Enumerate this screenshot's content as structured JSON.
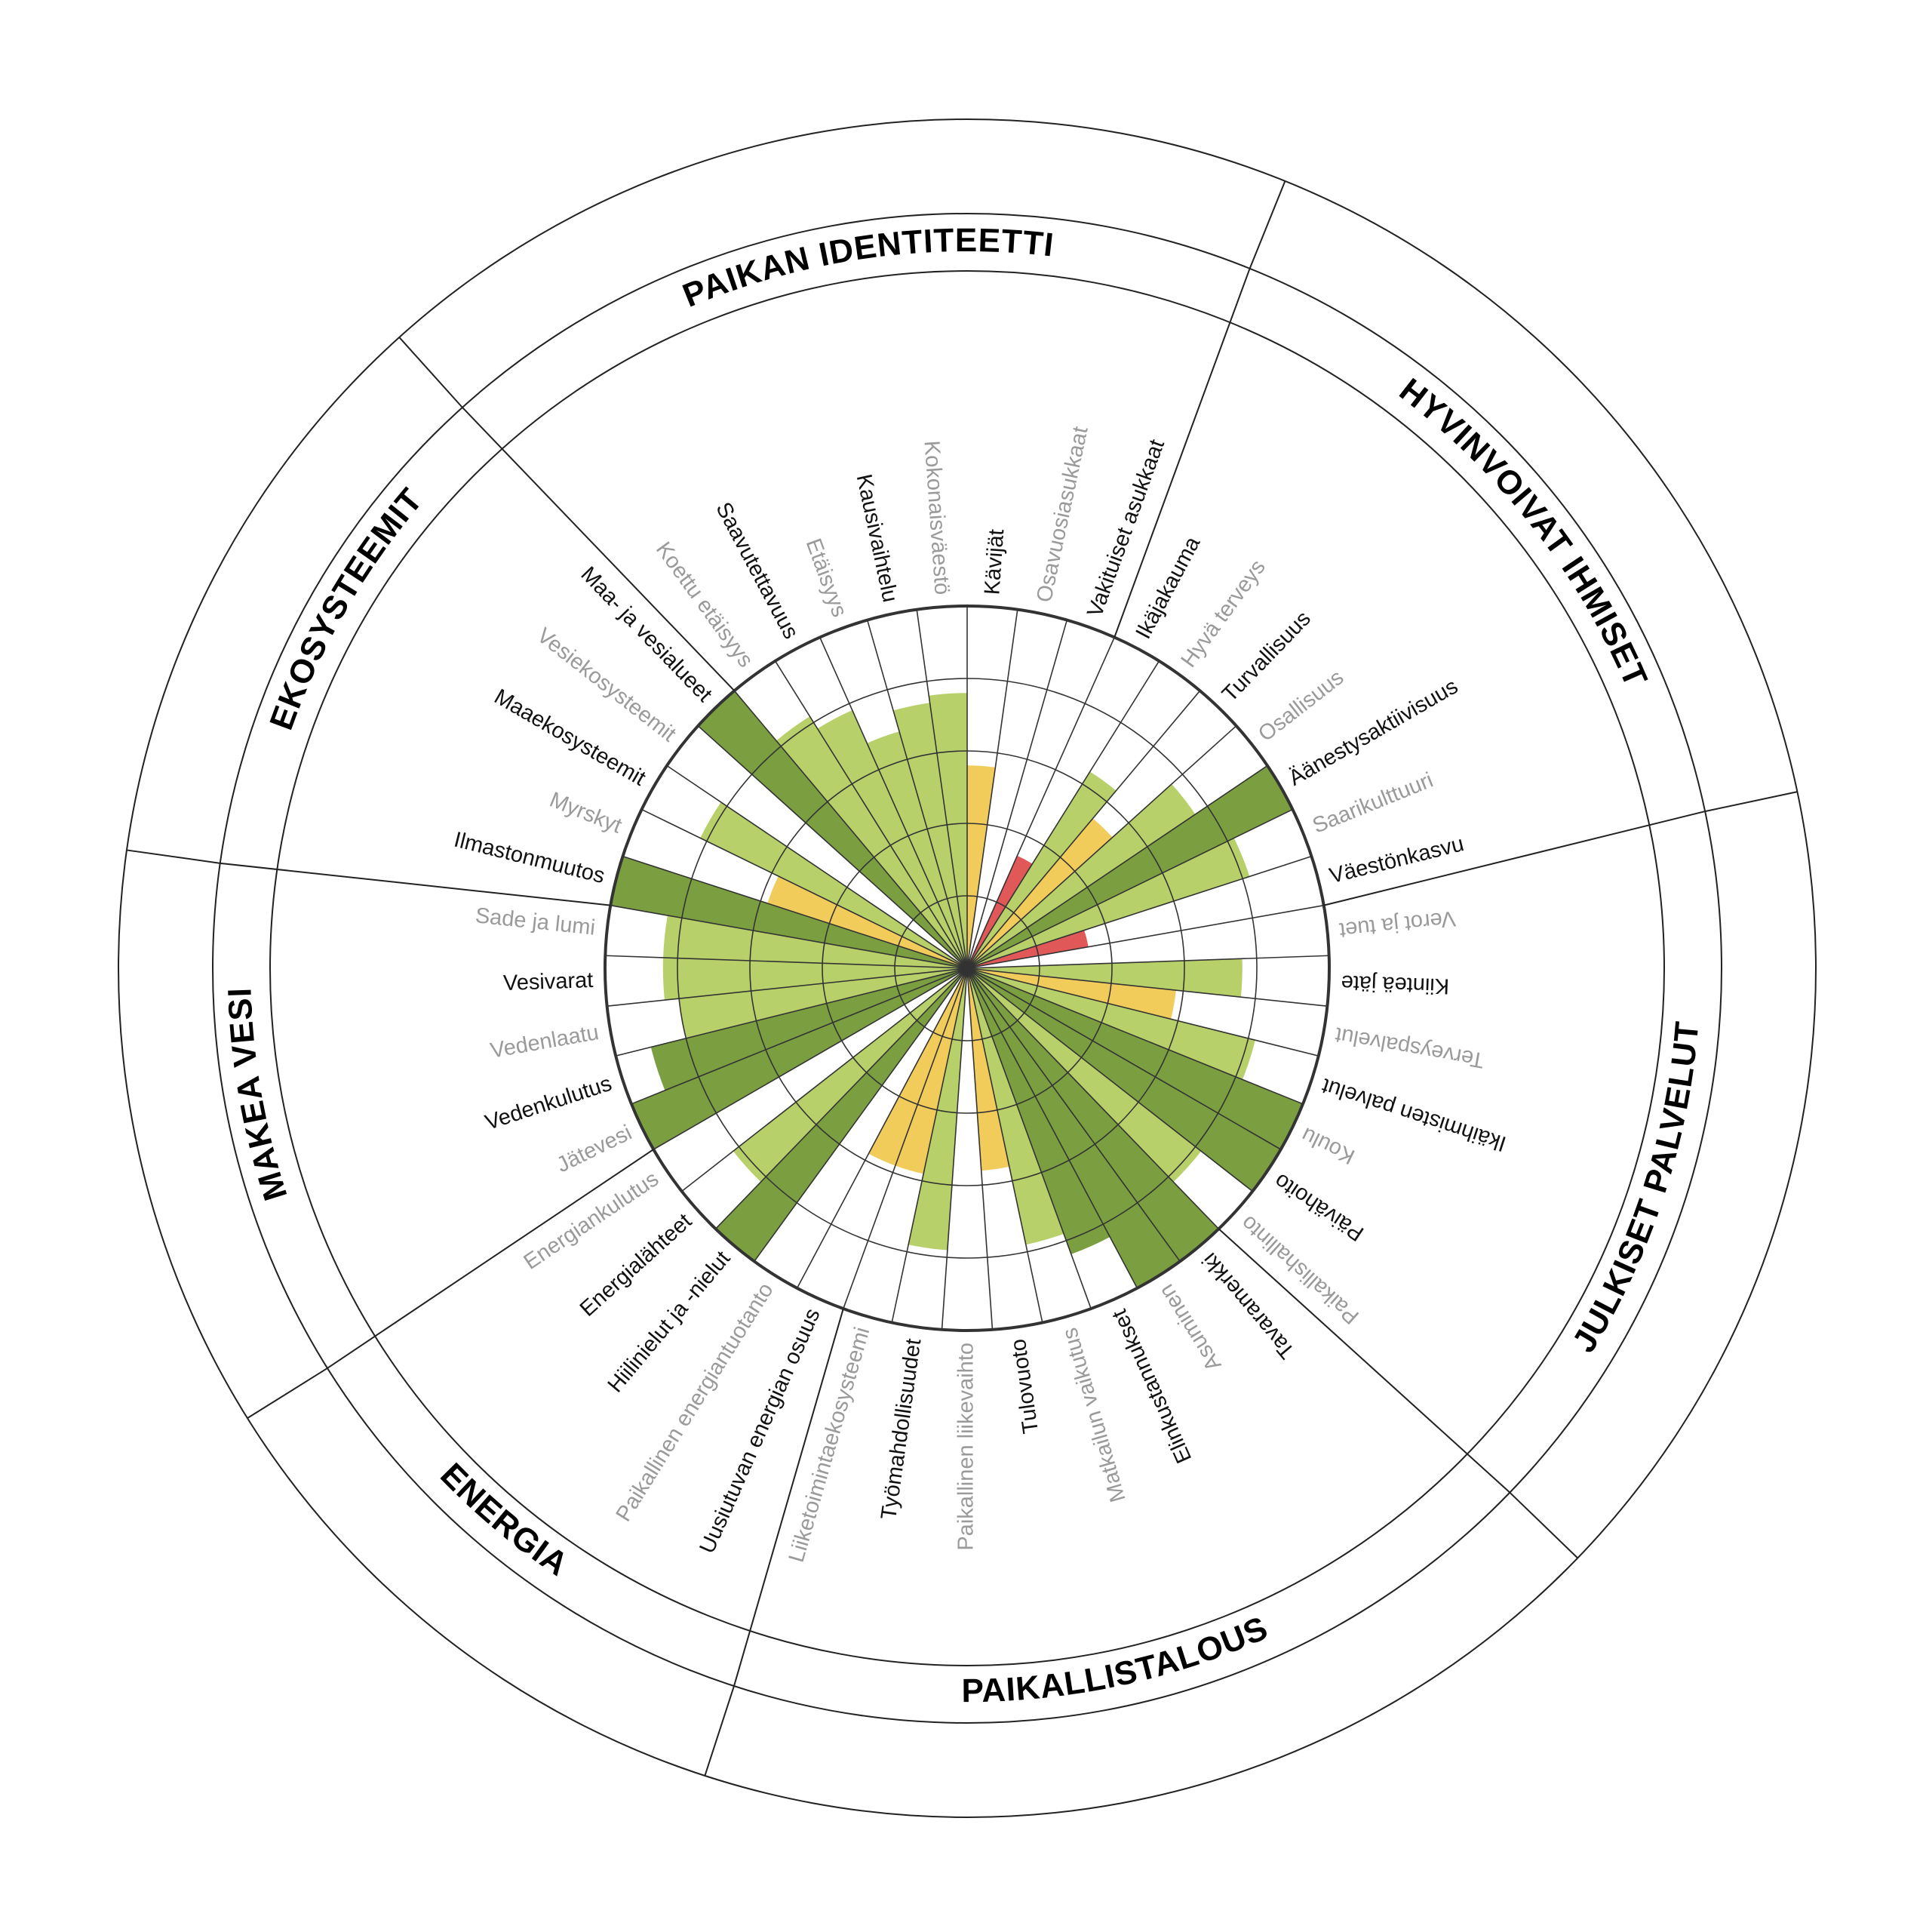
{
  "chart_data": {
    "type": "radial-bar",
    "scale_max": 5,
    "grid_rings": [
      1,
      2,
      3,
      4,
      5
    ],
    "colors": {
      "dark_green": "#7a9e40",
      "light_green": "#b8d06a",
      "yellow": "#f2cc5b",
      "red": "#e05858",
      "label_active": "#111111",
      "label_inactive": "#9a9a9a",
      "line": "#222222",
      "grid": "#333333"
    },
    "sectors": [
      {
        "name": "HYVINVOIVAT IHMISET",
        "indicators": [
          "Väestönkasvu",
          "Saarikulttuuri",
          "Äänestysaktiivisuus",
          "Osallisuus",
          "Turvallisuus",
          "Hyvä terveys",
          "Ikäjakauma"
        ]
      },
      {
        "name": "PAIKAN IDENTITEETTI",
        "indicators": [
          "Vakituiset asukkaat",
          "Osavuosiasukkaat",
          "Kävijät",
          "Kokonaisväestö",
          "Kausivaihtelu",
          "Etäisyys",
          "Saavutettavuus",
          "Koettu etäisyys"
        ]
      },
      {
        "name": "EKOSYSTEEMIT",
        "indicators": [
          "Maa- ja vesialueet",
          "Vesiekosysteemit",
          "Maaekosysteemit",
          "Myrskyt",
          "Ilmastonmuutos"
        ]
      },
      {
        "name": "MAKEA VESI",
        "indicators": [
          "Sade ja lumi",
          "Vesivarat",
          "Vedenlaatu",
          "Vedenkulutus",
          "Jätevesi"
        ]
      },
      {
        "name": "ENERGIA",
        "indicators": [
          "Energiankulutus",
          "Energialähteet",
          "Hiilinielut ja -nielut",
          "Paikallinen energiantuotanto",
          "Uusiutuvan energian osuus"
        ]
      },
      {
        "name": "PAIKALLISTALOUS",
        "indicators": [
          "Liiketoimintaekosysteemi",
          "Työmahdollisuudet",
          "Paikallinen liikevaihto",
          "Tulovuoto",
          "Matkailun vaikutus",
          "Elinkustannukset",
          "Asuminen",
          "Tavaramerkki"
        ]
      },
      {
        "name": "JULKISET PALVELUT",
        "indicators": [
          "Paikallishallinto",
          "Päivähoito",
          "Koulu",
          "Ikäihmisten palvelut",
          "Terveyspalvelut",
          "Kiinteä jäte",
          "Verot ja tuet"
        ]
      }
    ],
    "indicators": [
      {
        "label": "Väestönkasvu",
        "value": 1.7,
        "color": "red",
        "active": true
      },
      {
        "label": "Saarikulttuuri",
        "value": 4.1,
        "color": "light_green",
        "active": false
      },
      {
        "label": "Äänestysaktiivisuus",
        "value": 5.0,
        "color": "dark_green",
        "active": true
      },
      {
        "label": "Osallisuus",
        "value": 3.8,
        "color": "light_green",
        "active": false
      },
      {
        "label": "Turvallisuus",
        "value": 2.7,
        "color": "yellow",
        "active": true
      },
      {
        "label": "Hyvä terveys",
        "value": 3.2,
        "color": "light_green",
        "active": false
      },
      {
        "label": "Ikäjakauma",
        "value": 1.7,
        "color": "red",
        "active": true
      },
      {
        "label": "Vakituiset asukkaat",
        "value": 0,
        "color": "light_green",
        "active": true
      },
      {
        "label": "Osavuosiasukkaat",
        "value": 0,
        "color": "light_green",
        "active": false
      },
      {
        "label": "Kävijät",
        "value": 2.8,
        "color": "yellow",
        "active": true
      },
      {
        "label": "Kokonaisväestö",
        "value": 3.8,
        "color": "light_green",
        "active": false
      },
      {
        "label": "Kausivaihtelu",
        "value": 3.7,
        "color": "light_green",
        "active": true
      },
      {
        "label": "Etäisyys",
        "value": 3.4,
        "color": "light_green",
        "active": false
      },
      {
        "label": "Saavutettavuus",
        "value": 3.9,
        "color": "light_green",
        "active": true
      },
      {
        "label": "Koettu etäisyys",
        "value": 4.1,
        "color": "light_green",
        "active": false
      },
      {
        "label": "Maa- ja vesialueet",
        "value": 5.0,
        "color": "dark_green",
        "active": true
      },
      {
        "label": "Vesiekosysteemit",
        "value": 0,
        "color": "light_green",
        "active": false
      },
      {
        "label": "Maaekosysteemit",
        "value": 4.1,
        "color": "light_green",
        "active": true
      },
      {
        "label": "Myrskyt",
        "value": 2.9,
        "color": "yellow",
        "active": false
      },
      {
        "label": "Ilmastonmuutos",
        "value": 5.0,
        "color": "dark_green",
        "active": true
      },
      {
        "label": "Sade ja lumi",
        "value": 4.2,
        "color": "light_green",
        "active": false
      },
      {
        "label": "Vesivarat",
        "value": 4.2,
        "color": "light_green",
        "active": true
      },
      {
        "label": "Vedenlaatu",
        "value": 4.0,
        "color": "light_green",
        "active": false
      },
      {
        "label": "Vedenkulutus",
        "value": 4.5,
        "color": "dark_green",
        "active": true
      },
      {
        "label": "Jätevesi",
        "value": 5.0,
        "color": "dark_green",
        "active": false
      },
      {
        "label": "Energiankulutus",
        "value": 0,
        "color": "light_green",
        "active": false
      },
      {
        "label": "Energialähteet",
        "value": 4.1,
        "color": "light_green",
        "active": true
      },
      {
        "label": "Hiilinielut ja -nielut",
        "value": 5.0,
        "color": "dark_green",
        "active": true
      },
      {
        "label": "Paikallinen energiantuotanto",
        "value": 0,
        "color": "light_green",
        "active": false
      },
      {
        "label": "Uusiutuvan energian osuus",
        "value": 2.9,
        "color": "yellow",
        "active": true
      },
      {
        "label": "Liiketoimintaekosysteemi",
        "value": 2.9,
        "color": "yellow",
        "active": false
      },
      {
        "label": "Työmahdollisuudet",
        "value": 3.9,
        "color": "light_green",
        "active": true
      },
      {
        "label": "Paikallinen liikevaihto",
        "value": 0,
        "color": "light_green",
        "active": false
      },
      {
        "label": "Tulovuoto",
        "value": 2.8,
        "color": "yellow",
        "active": true
      },
      {
        "label": "Matkailun vaikutus",
        "value": 3.9,
        "color": "light_green",
        "active": false
      },
      {
        "label": "Elinkustannukset",
        "value": 4.2,
        "color": "dark_green",
        "active": true
      },
      {
        "label": "Asuminen",
        "value": 5.0,
        "color": "dark_green",
        "active": false
      },
      {
        "label": "Tavaramerkki",
        "value": 5.0,
        "color": "dark_green",
        "active": true
      },
      {
        "label": "Paikallishallinto",
        "value": 4.1,
        "color": "light_green",
        "active": false
      },
      {
        "label": "Päivähoito",
        "value": 5.0,
        "color": "dark_green",
        "active": true
      },
      {
        "label": "Koulu",
        "value": 5.0,
        "color": "dark_green",
        "active": false
      },
      {
        "label": "Ikäihmisten palvelut",
        "value": 4.1,
        "color": "light_green",
        "active": true
      },
      {
        "label": "Terveyspalvelut",
        "value": 2.9,
        "color": "yellow",
        "active": false
      },
      {
        "label": "Kiinteä jäte",
        "value": 3.8,
        "color": "light_green",
        "active": true
      },
      {
        "label": "Verot ja tuet",
        "value": 0,
        "color": "light_green",
        "active": false
      }
    ]
  }
}
